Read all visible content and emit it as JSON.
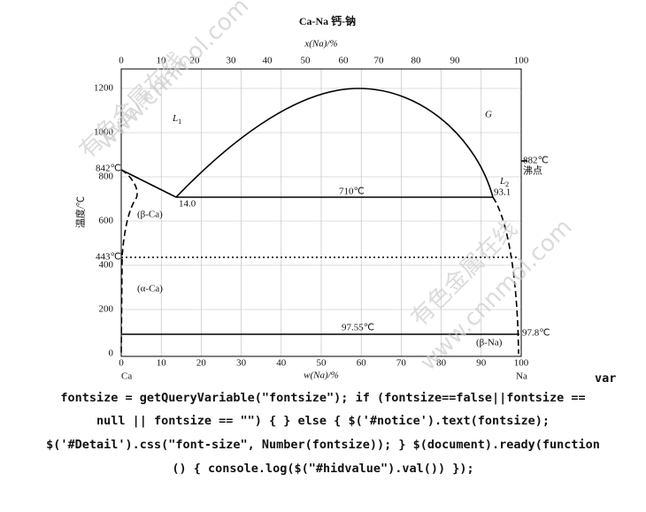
{
  "diagram": {
    "title": "Ca-Na  钙-钠",
    "top_axis_label": "x(Na)/%",
    "bottom_axis_label": "w(Na)/%",
    "y_axis_label": "温度/℃",
    "top_ticks": [
      "0",
      "10",
      "20",
      "30",
      "40",
      "50",
      "60",
      "70",
      "80",
      "90",
      "100"
    ],
    "bottom_ticks": [
      "0",
      "10",
      "20",
      "30",
      "40",
      "50",
      "60",
      "70",
      "80",
      "90",
      "100"
    ],
    "y_ticks": [
      "0",
      "200",
      "400",
      "600",
      "800",
      "1000",
      "1200"
    ],
    "annotations": [
      "842℃",
      "443℃",
      "14.0",
      "710℃",
      "93.1",
      "97.55℃",
      "97.8℃",
      "882℃",
      "沸点",
      "(β-Ca)",
      "(α-Ca)",
      "(β-Na)",
      "G",
      "Ca",
      "Na"
    ],
    "phase_labels": [
      {
        "text": "L",
        "sub": "1"
      },
      {
        "text": "L",
        "sub": "2"
      }
    ],
    "watermarks": [
      "有色金属在线",
      "www.cnnmol.com"
    ]
  },
  "code": {
    "lines": [
      "var",
      "fontsize = getQueryVariable(\"fontsize\"); if (fontsize==false||fontsize ==",
      "null || fontsize == \"\") { } else { $('#notice').text(fontsize);",
      "$('#Detail').css(\"font-size\", Number(fontsize)); } $(document).ready(function",
      "() { console.log($(\"#hidvalue\").val()) });"
    ]
  }
}
